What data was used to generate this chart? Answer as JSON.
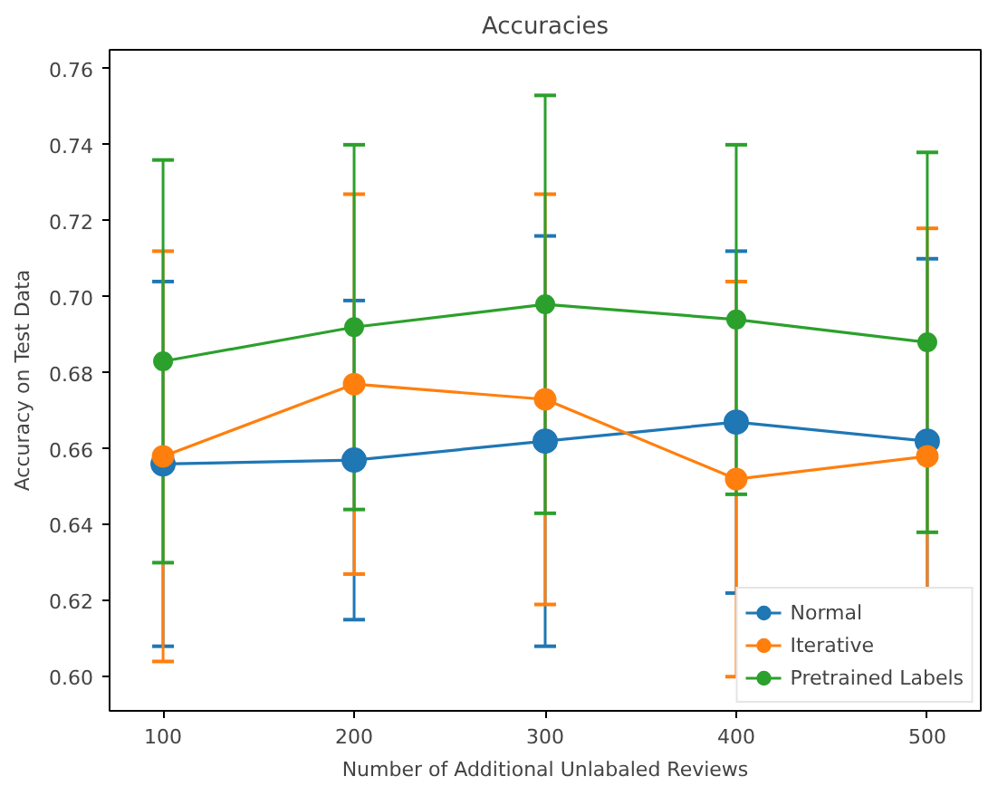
{
  "chart_data": {
    "type": "line",
    "title": "Accuracies",
    "xlabel": "Number of Additional Unlabaled Reviews",
    "ylabel": "Accuracy on Test Data",
    "x": [
      100,
      200,
      300,
      400,
      500
    ],
    "series": [
      {
        "name": "Normal",
        "color": "#1f77b4",
        "values": [
          0.656,
          0.657,
          0.662,
          0.667,
          0.662
        ],
        "errors": [
          0.048,
          0.042,
          0.054,
          0.045,
          0.048
        ]
      },
      {
        "name": "Iterative",
        "color": "#ff7f0e",
        "values": [
          0.658,
          0.677,
          0.673,
          0.652,
          0.658
        ],
        "errors": [
          0.054,
          0.05,
          0.054,
          0.052,
          0.06
        ]
      },
      {
        "name": "Pretrained Labels",
        "color": "#2ca02c",
        "values": [
          0.683,
          0.692,
          0.698,
          0.694,
          0.688
        ],
        "errors": [
          0.053,
          0.048,
          0.055,
          0.046,
          0.05
        ]
      }
    ],
    "xlim": [
      72,
      528
    ],
    "ylim": [
      0.591,
      0.765
    ],
    "xticks": [
      100,
      200,
      300,
      400,
      500
    ],
    "yticks": [
      {
        "value": 0.6,
        "label": "0.60"
      },
      {
        "value": 0.62,
        "label": "0.62"
      },
      {
        "value": 0.64,
        "label": "0.64"
      },
      {
        "value": 0.66,
        "label": "0.66"
      },
      {
        "value": 0.68,
        "label": "0.68"
      },
      {
        "value": 0.7,
        "label": "0.70"
      },
      {
        "value": 0.72,
        "label": "0.72"
      },
      {
        "value": 0.74,
        "label": "0.74"
      },
      {
        "value": 0.76,
        "label": "0.76"
      }
    ],
    "marker": "circle",
    "grid": false,
    "legend": "bottom right"
  }
}
